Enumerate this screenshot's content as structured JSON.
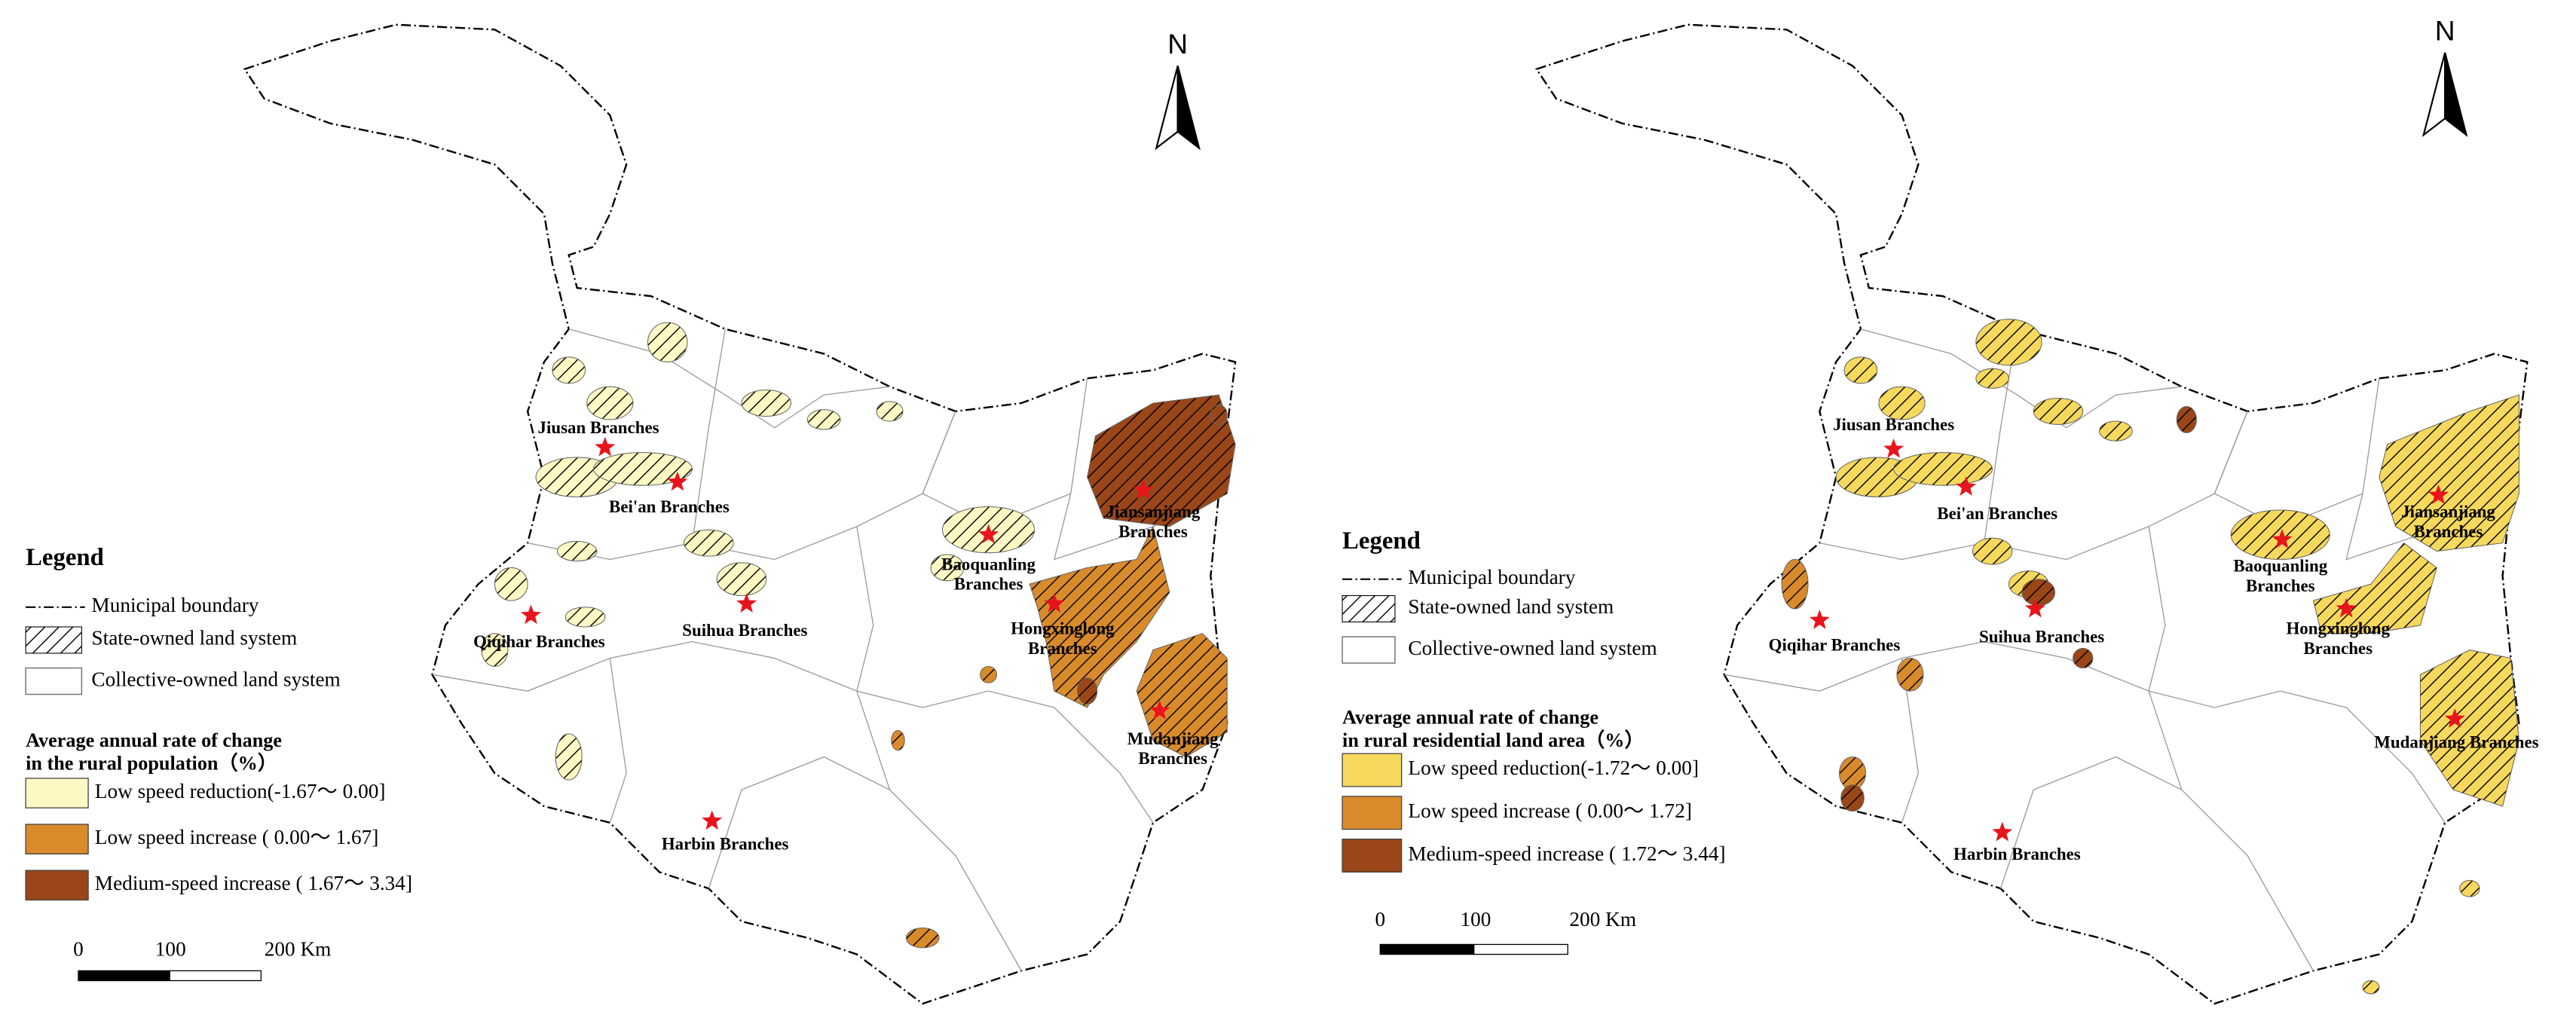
{
  "maps": [
    {
      "north": "N",
      "legend": {
        "title": "Legend",
        "boundary": "Municipal boundary",
        "state": "State-owned land system",
        "collective": "Collective-owned land system",
        "rate_title": [
          "Average annual rate of change",
          "in the rural population（%）"
        ],
        "classes": [
          {
            "label": "Low speed reduction(-1.67～ 0.00]",
            "color": "#fdf8c4"
          },
          {
            "label": "Low speed increase ( 0.00～ 1.67]",
            "color": "#d98b2b"
          },
          {
            "label": "Medium-speed increase ( 1.67～ 3.34]",
            "color": "#9a4618"
          }
        ]
      },
      "scale": [
        "0",
        "100",
        "200 Km"
      ],
      "branches": [
        {
          "lines": [
            "Jiusan Branches"
          ]
        },
        {
          "lines": [
            "Bei'an Branches"
          ]
        },
        {
          "lines": [
            "Qiqihar Branches"
          ]
        },
        {
          "lines": [
            "Suihua Branches"
          ]
        },
        {
          "lines": [
            "Harbin Branches"
          ]
        },
        {
          "lines": [
            "Baoquanling",
            "Branches"
          ]
        },
        {
          "lines": [
            "Jiansanjiang",
            "Branches"
          ]
        },
        {
          "lines": [
            "Hongxinglong",
            "Branches"
          ]
        },
        {
          "lines": [
            "Mudanjiang",
            "Branches"
          ]
        }
      ]
    },
    {
      "north": "N",
      "legend": {
        "title": "Legend",
        "boundary": "Municipal boundary",
        "state": "State-owned land system",
        "collective": "Collective-owned land system",
        "rate_title": [
          "Average annual rate of change",
          "in rural residential land area（%）"
        ],
        "classes": [
          {
            "label": "Low speed reduction(-1.72～ 0.00]",
            "color": "#f6d95c"
          },
          {
            "label": "Low speed increase ( 0.00～ 1.72]",
            "color": "#d98b2b"
          },
          {
            "label": "Medium-speed increase ( 1.72～ 3.44]",
            "color": "#9a4618"
          }
        ]
      },
      "scale": [
        "0",
        "100",
        "200 Km"
      ],
      "branches": [
        {
          "lines": [
            "Jiusan Branches"
          ]
        },
        {
          "lines": [
            "Bei'an Branches"
          ]
        },
        {
          "lines": [
            "Qiqihar Branches"
          ]
        },
        {
          "lines": [
            "Suihua Branches"
          ]
        },
        {
          "lines": [
            "Harbin Branches"
          ]
        },
        {
          "lines": [
            "Baoquanling",
            "Branches"
          ]
        },
        {
          "lines": [
            "Jiansanjiang",
            "Branches"
          ]
        },
        {
          "lines": [
            "Hongxinglong",
            "Branches"
          ]
        },
        {
          "lines": [
            "Mudanjiang Branches"
          ]
        }
      ]
    }
  ]
}
